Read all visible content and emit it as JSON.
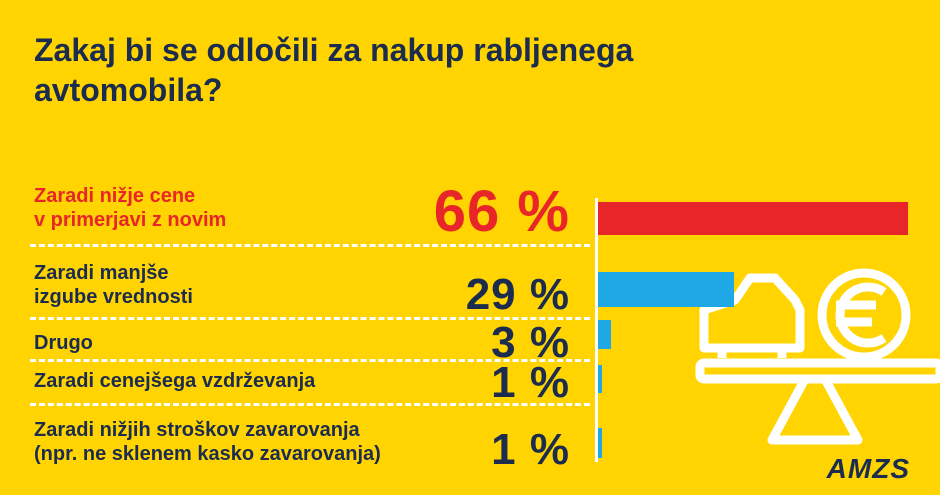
{
  "title": "Zakaj bi se odločili za nakup rabljenega avtomobila?",
  "brand": "AMZS",
  "colors": {
    "background": "#FFD400",
    "highlight": "#E8262A",
    "bar": "#1EA8E6",
    "text": "#1B2C4E",
    "illustration": "#FFFFFF"
  },
  "illustration": {
    "icons": [
      "car-icon",
      "euro-icon",
      "balance-scale-icon"
    ]
  },
  "chart_data": {
    "type": "bar",
    "orientation": "horizontal",
    "title": "Zakaj bi se odločili za nakup rabljenega avtomobila?",
    "categories": [
      "Zaradi nižje cene\nv primerjavi z novim",
      "Zaradi manjše\nizgube vrednosti",
      "Drugo",
      "Zaradi cenejšega vzdrževanja",
      "Zaradi nižjih stroškov zavarovanja\n(npr. ne sklenem kasko zavarovanja)"
    ],
    "values": [
      66,
      29,
      3,
      1,
      1
    ],
    "value_labels": [
      "66 %",
      "29 %",
      "3 %",
      "1 %",
      "1 %"
    ],
    "unit": "%",
    "highlight_index": 0,
    "xlim": [
      0,
      66
    ]
  }
}
